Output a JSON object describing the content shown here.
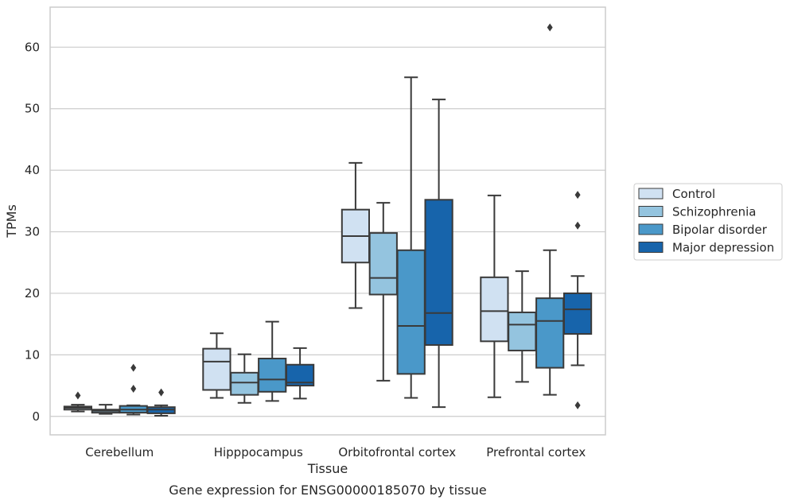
{
  "chart_data": {
    "type": "box",
    "title": "",
    "caption": "Gene expression for ENSG00000185070 by tissue",
    "xlabel": "Tissue",
    "ylabel": "TPMs",
    "ylim": [
      -3,
      66.5
    ],
    "yticks": [
      0,
      10,
      20,
      30,
      40,
      50,
      60
    ],
    "grid": "horizontal",
    "legend_position": "right",
    "categories": [
      "Cerebellum",
      "Hipppocampus",
      "Orbitofrontal cortex",
      "Prefrontal cortex"
    ],
    "series": [
      {
        "name": "Control",
        "color": "#d0e1f2",
        "boxes": [
          {
            "whislo": 0.8,
            "q1": 1.1,
            "med": 1.4,
            "q3": 1.6,
            "whishi": 1.9,
            "fliers": [
              3.4
            ]
          },
          {
            "whislo": 3.0,
            "q1": 4.3,
            "med": 8.9,
            "q3": 11.0,
            "whishi": 13.5,
            "fliers": []
          },
          {
            "whislo": 17.6,
            "q1": 25.0,
            "med": 29.3,
            "q3": 33.6,
            "whishi": 41.2,
            "fliers": []
          },
          {
            "whislo": 3.1,
            "q1": 12.2,
            "med": 17.1,
            "q3": 22.6,
            "whishi": 35.9,
            "fliers": []
          }
        ]
      },
      {
        "name": "Schizophrenia",
        "color": "#94c4df",
        "boxes": [
          {
            "whislo": 0.4,
            "q1": 0.6,
            "med": 0.9,
            "q3": 1.1,
            "whishi": 1.9,
            "fliers": []
          },
          {
            "whislo": 2.2,
            "q1": 3.5,
            "med": 5.5,
            "q3": 7.1,
            "whishi": 10.1,
            "fliers": []
          },
          {
            "whislo": 5.8,
            "q1": 19.8,
            "med": 22.5,
            "q3": 29.8,
            "whishi": 34.7,
            "fliers": []
          },
          {
            "whislo": 5.6,
            "q1": 10.7,
            "med": 14.9,
            "q3": 16.9,
            "whishi": 23.6,
            "fliers": []
          }
        ]
      },
      {
        "name": "Bipolar disorder",
        "color": "#4a98c9",
        "boxes": [
          {
            "whislo": 0.3,
            "q1": 0.6,
            "med": 1.1,
            "q3": 1.7,
            "whishi": 1.8,
            "fliers": [
              4.5,
              7.9
            ]
          },
          {
            "whislo": 2.5,
            "q1": 4.0,
            "med": 6.0,
            "q3": 9.4,
            "whishi": 15.4,
            "fliers": []
          },
          {
            "whislo": 3.0,
            "q1": 6.9,
            "med": 14.7,
            "q3": 27.0,
            "whishi": 55.1,
            "fliers": []
          },
          {
            "whislo": 3.5,
            "q1": 7.9,
            "med": 15.5,
            "q3": 19.2,
            "whishi": 27.0,
            "fliers": [
              63.2
            ]
          }
        ]
      },
      {
        "name": "Major depression",
        "color": "#1764ab",
        "boxes": [
          {
            "whislo": 0.1,
            "q1": 0.5,
            "med": 1.1,
            "q3": 1.5,
            "whishi": 1.8,
            "fliers": [
              3.9
            ]
          },
          {
            "whislo": 2.9,
            "q1": 5.0,
            "med": 5.5,
            "q3": 8.4,
            "whishi": 11.1,
            "fliers": []
          },
          {
            "whislo": 1.5,
            "q1": 11.6,
            "med": 16.8,
            "q3": 35.2,
            "whishi": 51.5,
            "fliers": []
          },
          {
            "whislo": 8.3,
            "q1": 13.4,
            "med": 17.4,
            "q3": 20.0,
            "whishi": 22.8,
            "fliers": [
              1.8,
              31.0,
              36.0
            ]
          }
        ]
      }
    ]
  }
}
